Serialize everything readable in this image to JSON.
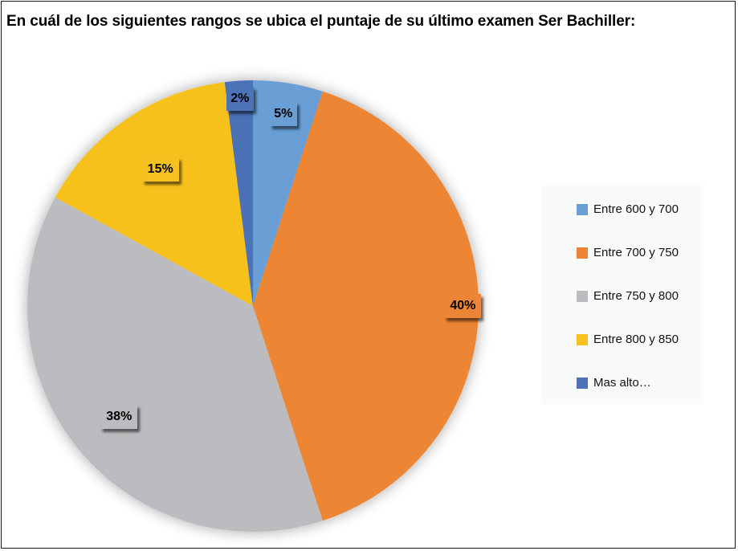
{
  "chart_data": {
    "type": "pie",
    "title": "En cuál de los siguientes rangos se ubica el puntaje de su último examen Ser Bachiller:",
    "categories": [
      "Entre 600 y 700",
      "Entre 700 y 750",
      "Entre 750 y 800",
      "Entre 800 y 850",
      "Mas alto…"
    ],
    "values": [
      5,
      40,
      38,
      15,
      2
    ],
    "labels": [
      "5%",
      "40%",
      "38%",
      "15%",
      "2%"
    ],
    "colors": [
      "#699fd5",
      "#ec8636",
      "#bcbbbf",
      "#f7c11f",
      "#4c72b7"
    ],
    "start_angle": 0,
    "direction": "clockwise",
    "legend_position": "right"
  }
}
